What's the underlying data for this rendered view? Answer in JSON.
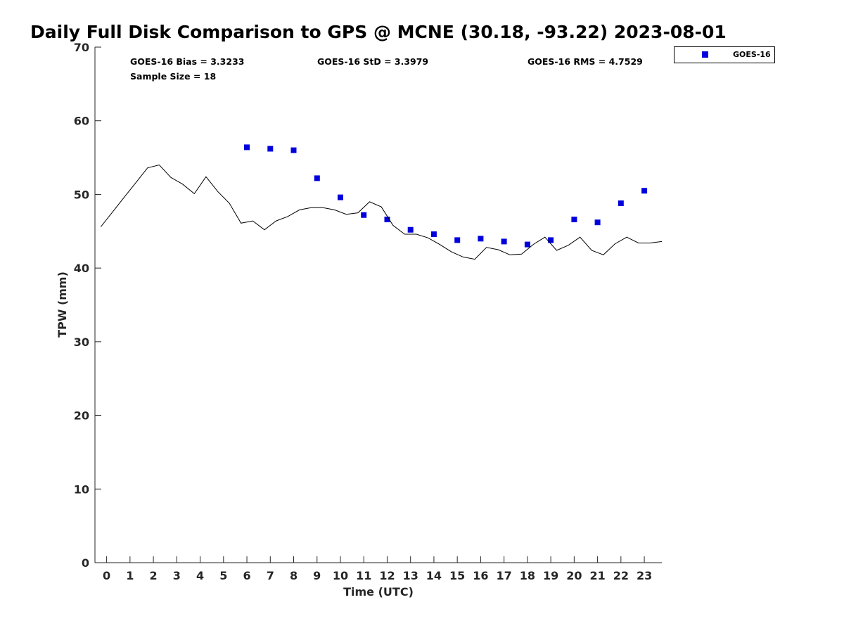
{
  "chart_data": {
    "type": "scatter",
    "title": "Daily Full Disk Comparison to GPS @ MCNE (30.18, -93.22) 2023-08-01",
    "xlabel": "Time (UTC)",
    "ylabel": "TPW (mm)",
    "xlim": [
      -0.5,
      23.75
    ],
    "ylim": [
      0,
      70
    ],
    "xticks": [
      0,
      1,
      2,
      3,
      4,
      5,
      6,
      7,
      8,
      9,
      10,
      11,
      12,
      13,
      14,
      15,
      16,
      17,
      18,
      19,
      20,
      21,
      22,
      23
    ],
    "xtick_labels": [
      "0",
      "1",
      "2",
      "3",
      "4",
      "5",
      "6",
      "7",
      "8",
      "9",
      "10",
      "11",
      "12",
      "13",
      "14",
      "15",
      "16",
      "17",
      "18",
      "19",
      "20",
      "21",
      "22",
      "23"
    ],
    "yticks": [
      0,
      10,
      20,
      30,
      40,
      50,
      60,
      70
    ],
    "ytick_labels": [
      "0",
      "10",
      "20",
      "30",
      "40",
      "50",
      "60",
      "70"
    ],
    "grid": false,
    "legend_position": "top-right-outside",
    "annotations": {
      "bias": "GOES-16 Bias = 3.3233",
      "std": "GOES-16 StD = 3.3979",
      "rms": "GOES-16 RMS = 4.7529",
      "sample": "Sample Size = 18"
    },
    "series": [
      {
        "name": "GOES-16",
        "kind": "scatter",
        "marker": "square",
        "color": "#0000dd",
        "x": [
          6,
          7,
          8,
          9,
          10,
          11,
          12,
          13,
          14,
          15,
          16,
          17,
          18,
          19,
          20,
          21,
          22,
          23
        ],
        "y": [
          56.4,
          56.2,
          56.0,
          52.2,
          49.6,
          47.2,
          46.6,
          45.2,
          44.6,
          43.8,
          44.0,
          43.6,
          43.2,
          43.8,
          46.6,
          46.2,
          48.8,
          50.5
        ]
      },
      {
        "kind": "line",
        "color": "#000000",
        "x": [
          -0.25,
          0.25,
          0.75,
          1.25,
          1.75,
          2.25,
          2.75,
          3.25,
          3.75,
          4.25,
          4.75,
          5.25,
          5.75,
          6.25,
          6.75,
          7.25,
          7.75,
          8.25,
          8.75,
          9.25,
          9.75,
          10.25,
          10.75,
          11.25,
          11.75,
          12.25,
          12.75,
          13.25,
          13.75,
          14.25,
          14.75,
          15.25,
          15.75,
          16.25,
          16.75,
          17.25,
          17.75,
          18.25,
          18.75,
          19.25,
          19.75,
          20.25,
          20.75,
          21.25,
          21.75,
          22.25,
          22.75,
          23.25,
          23.75
        ],
        "y": [
          45.6,
          47.6,
          49.6,
          51.6,
          53.6,
          54.0,
          52.3,
          51.4,
          50.1,
          52.4,
          50.4,
          48.8,
          46.1,
          46.4,
          45.2,
          46.4,
          47.0,
          47.9,
          48.2,
          48.2,
          47.9,
          47.3,
          47.5,
          49.0,
          48.3,
          45.8,
          44.6,
          44.6,
          44.1,
          43.2,
          42.2,
          41.5,
          41.2,
          42.8,
          42.5,
          41.8,
          41.9,
          43.2,
          44.2,
          42.4,
          43.1,
          44.2,
          42.4,
          41.8,
          43.3,
          44.2,
          43.4,
          43.4,
          43.6
        ]
      }
    ]
  }
}
